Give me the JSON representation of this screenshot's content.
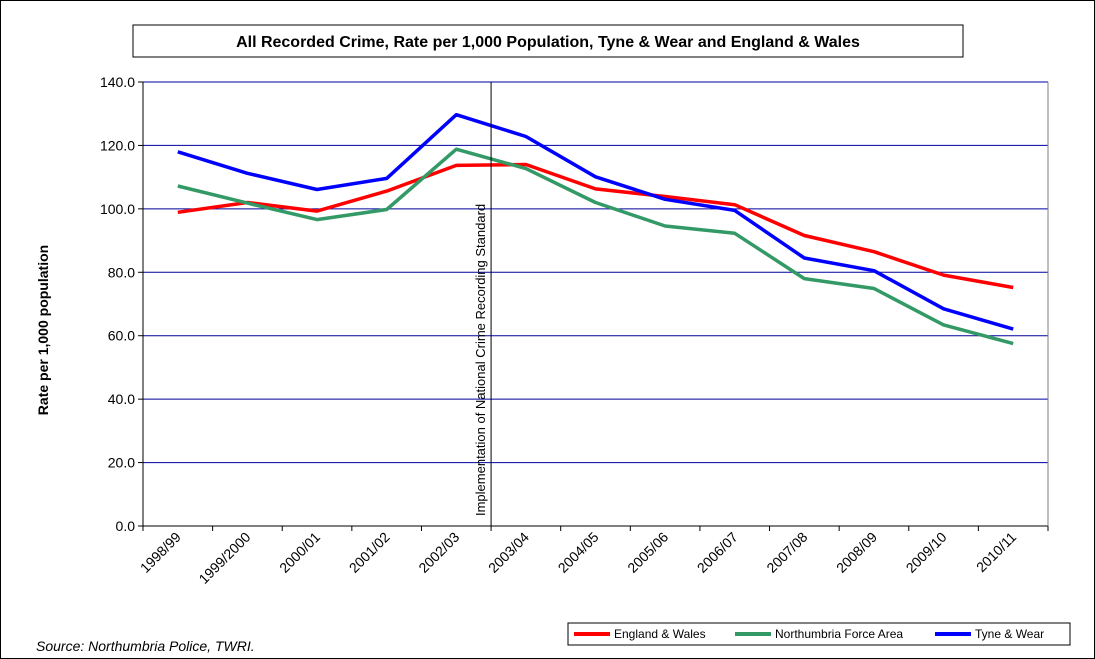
{
  "chart_data": {
    "type": "line",
    "title": "All Recorded Crime, Rate per 1,000 Population, Tyne & Wear and England & Wales",
    "ylabel": "Rate per 1,000 population",
    "xlabel": "",
    "ylim": [
      0,
      140
    ],
    "yticks": [
      "0.0",
      "20.0",
      "40.0",
      "60.0",
      "80.0",
      "100.0",
      "120.0",
      "140.0"
    ],
    "categories": [
      "1998/99",
      "1999/2000",
      "2000/01",
      "2001/02",
      "2002/03",
      "2003/04",
      "2004/05",
      "2005/06",
      "2006/07",
      "2007/08",
      "2008/09",
      "2009/10",
      "2010/11"
    ],
    "series": [
      {
        "name": "England & Wales",
        "color": "#ff0000",
        "values": [
          98.9,
          102.0,
          99.3,
          105.6,
          113.7,
          114.0,
          106.3,
          103.9,
          101.3,
          91.6,
          86.5,
          79.1,
          75.2
        ]
      },
      {
        "name": "Northumbria Force Area",
        "color": "#339966",
        "values": [
          107.2,
          101.8,
          96.6,
          99.8,
          118.8,
          112.7,
          102.0,
          94.6,
          92.3,
          78.0,
          74.9,
          63.4,
          57.5
        ]
      },
      {
        "name": "Tyne & Wear",
        "color": "#0000ff",
        "values": [
          118.0,
          111.2,
          106.1,
          109.6,
          129.7,
          122.8,
          110.1,
          103.0,
          99.5,
          84.5,
          80.5,
          68.5,
          62.1
        ]
      }
    ],
    "annotation": "Implementation of National Crime Recording Standard",
    "legend_position": "bottom-right",
    "grid": true,
    "gridline_color": "#0000a0"
  },
  "source": "Source: Northumbria Police, TWRI."
}
